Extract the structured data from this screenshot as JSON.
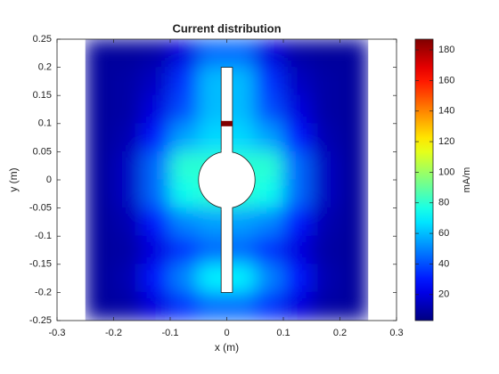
{
  "chart_data": {
    "type": "heatmap",
    "title": "Current distribution",
    "xlabel": "x (m)",
    "ylabel": "y (m)",
    "colorbar_label": "mA/m",
    "colormap": "jet",
    "xlim": [
      -0.3,
      0.3
    ],
    "xticks": [
      -0.3,
      -0.2,
      -0.1,
      0,
      0.1,
      0.2,
      0.3
    ],
    "ylim": [
      -0.25,
      0.25
    ],
    "yticks": [
      -0.25,
      -0.2,
      -0.15,
      -0.1,
      -0.05,
      0,
      0.05,
      0.1,
      0.15,
      0.2,
      0.25
    ],
    "clim": [
      3,
      187
    ],
    "cticks": [
      20,
      40,
      60,
      80,
      100,
      120,
      140,
      160,
      180
    ],
    "x": [
      -0.225,
      -0.175,
      -0.125,
      -0.075,
      -0.025,
      0.025,
      0.075,
      0.125,
      0.175,
      0.225
    ],
    "y": [
      0.225,
      0.175,
      0.125,
      0.075,
      0.025,
      -0.025,
      -0.075,
      -0.125,
      -0.175,
      -0.225
    ],
    "z": [
      [
        8,
        8,
        10,
        20,
        45,
        45,
        20,
        10,
        8,
        8
      ],
      [
        8,
        10,
        15,
        35,
        60,
        60,
        35,
        15,
        10,
        8
      ],
      [
        8,
        10,
        20,
        40,
        60,
        60,
        40,
        20,
        10,
        8
      ],
      [
        8,
        12,
        30,
        55,
        65,
        65,
        55,
        30,
        12,
        8
      ],
      [
        8,
        15,
        45,
        80,
        80,
        80,
        80,
        45,
        15,
        8
      ],
      [
        8,
        15,
        45,
        75,
        80,
        80,
        75,
        45,
        15,
        8
      ],
      [
        8,
        12,
        30,
        50,
        55,
        55,
        50,
        30,
        12,
        8
      ],
      [
        8,
        10,
        20,
        35,
        45,
        45,
        35,
        20,
        10,
        8
      ],
      [
        8,
        12,
        30,
        50,
        70,
        70,
        50,
        30,
        12,
        8
      ],
      [
        8,
        10,
        20,
        35,
        45,
        45,
        35,
        20,
        10,
        8
      ]
    ],
    "feed": {
      "x": 0,
      "y": 0.1,
      "value": 187
    }
  }
}
